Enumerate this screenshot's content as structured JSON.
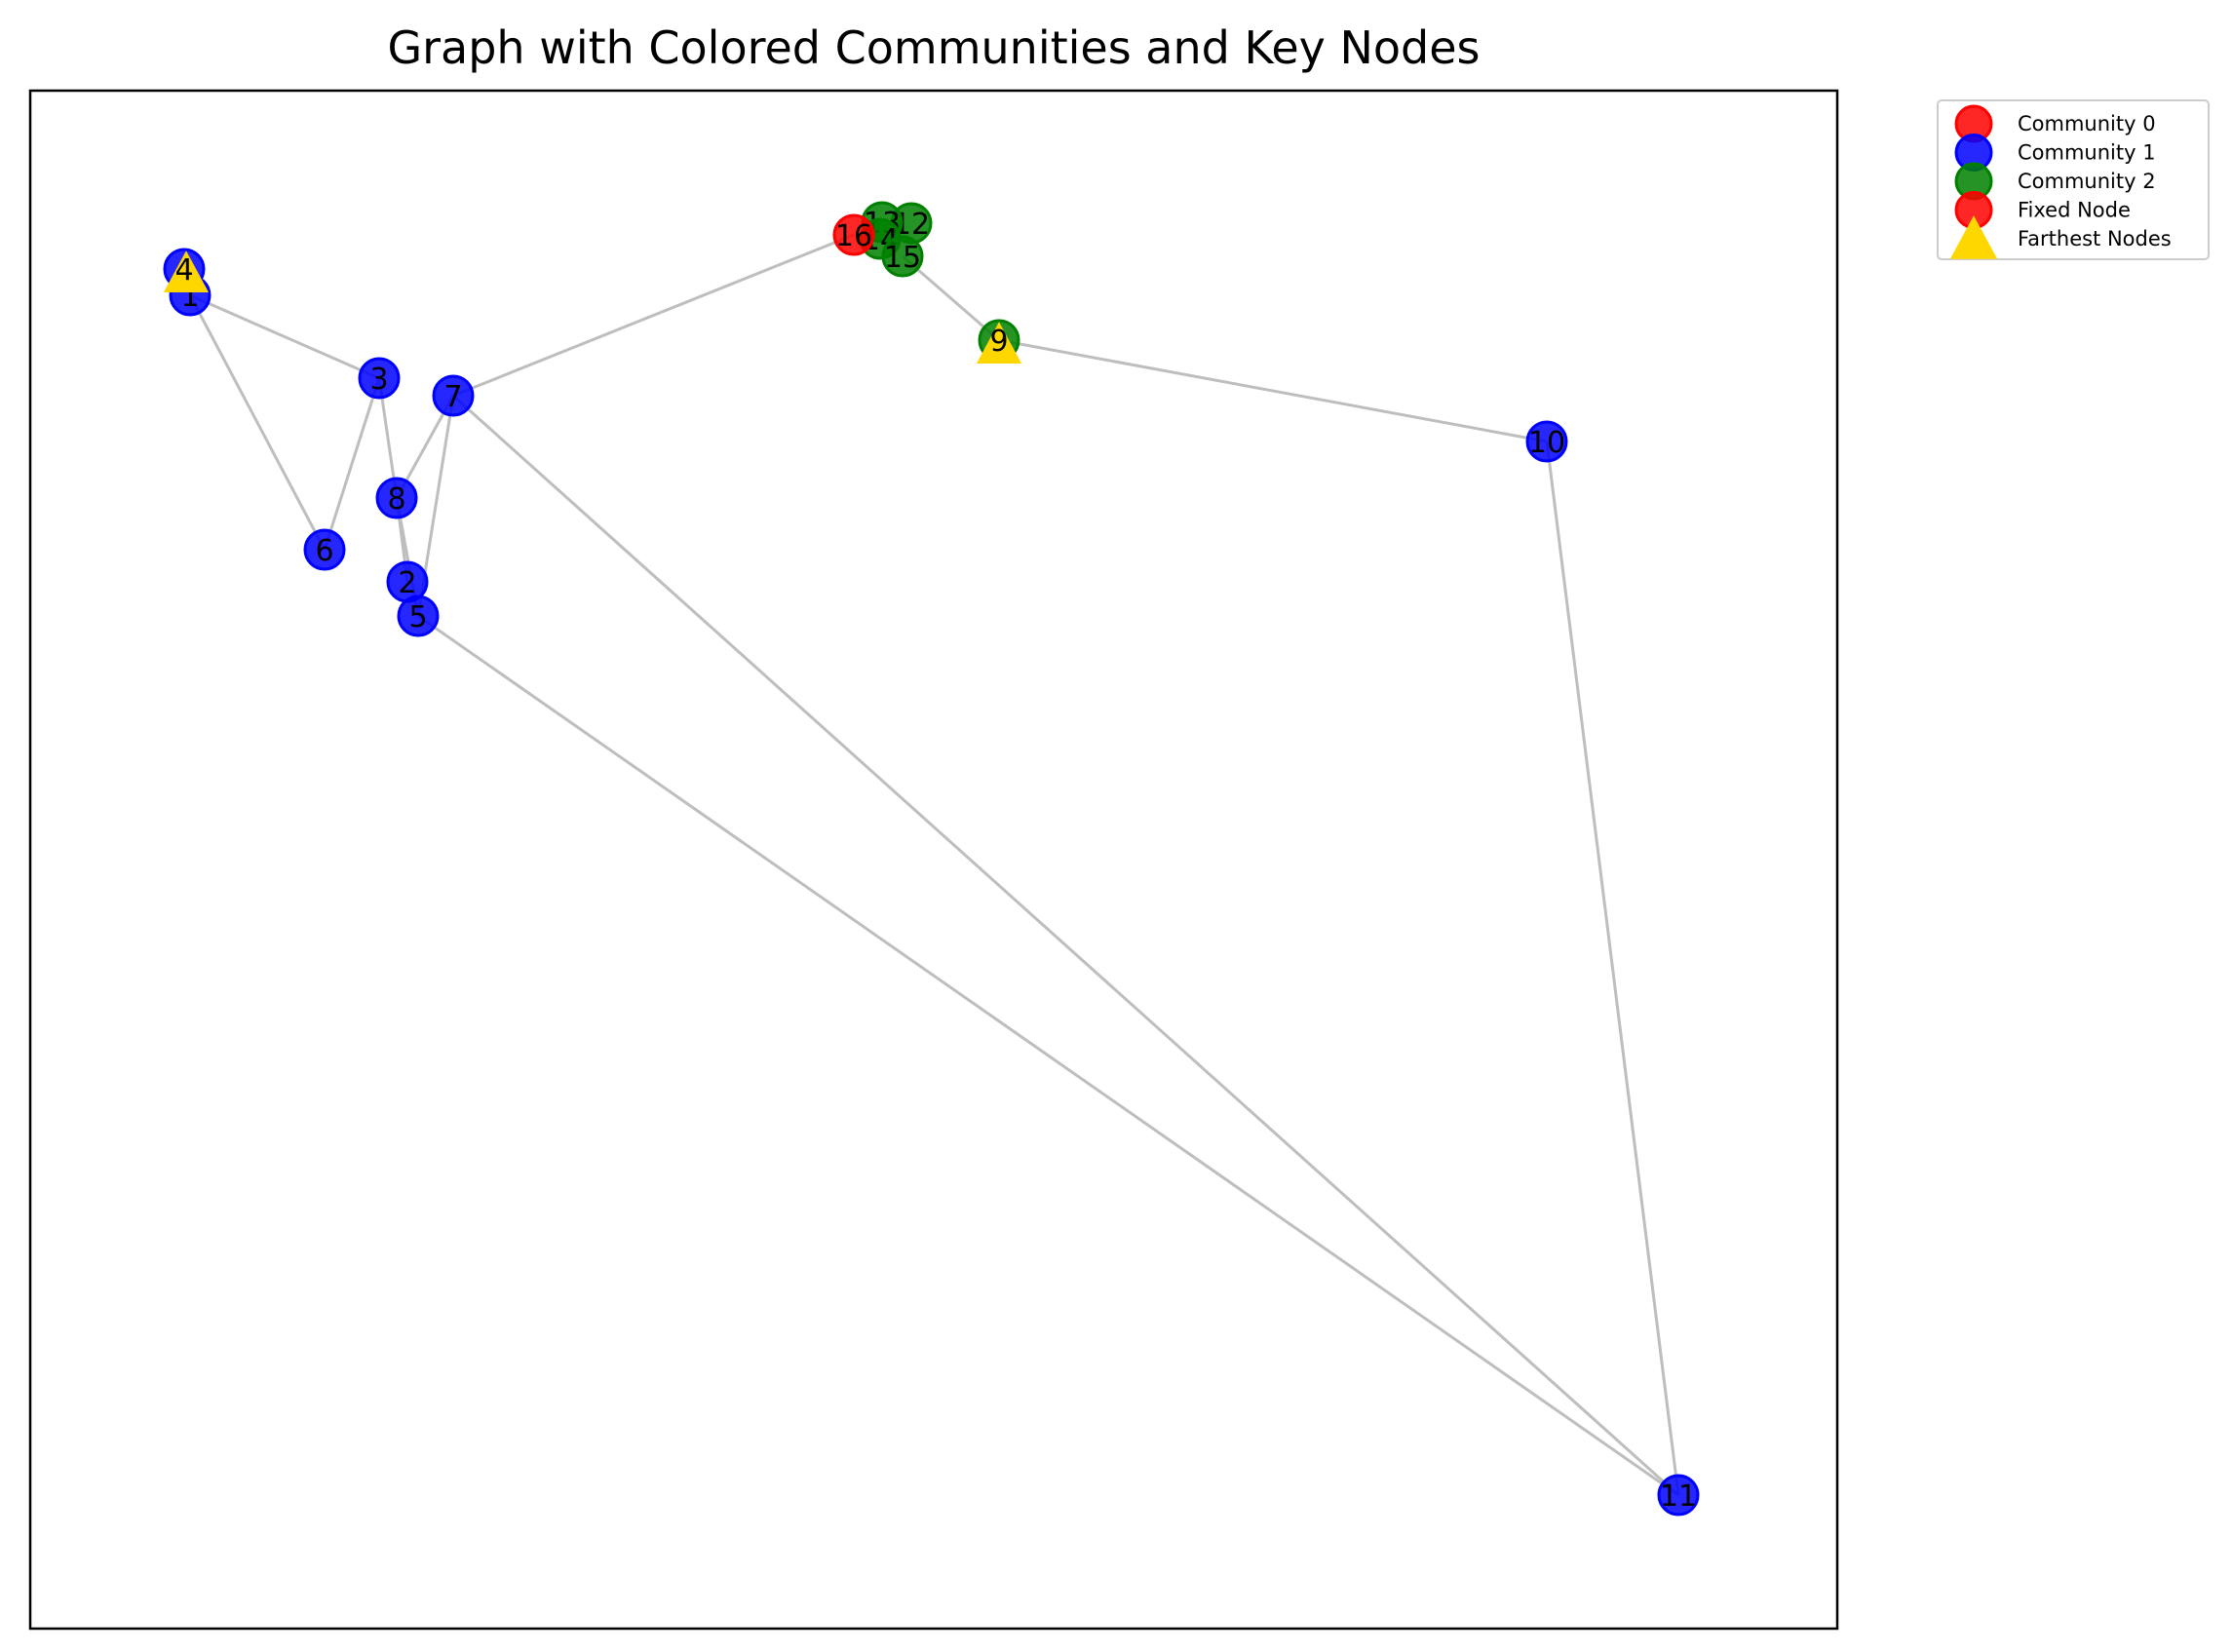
{
  "title": "Graph with Colored Communities and Key Nodes",
  "colors": {
    "community_0": "#ff0000",
    "community_1": "#0000ff",
    "community_2": "#008000",
    "fixed_node": "#ff0000",
    "farthest_nodes": "#ffd700",
    "edge": "#bebebe"
  },
  "legend": [
    {
      "label": "Community 0",
      "marker": "circle",
      "color": "#ff0000"
    },
    {
      "label": "Community 1",
      "marker": "circle",
      "color": "#0000ff"
    },
    {
      "label": "Community 2",
      "marker": "circle",
      "color": "#008000"
    },
    {
      "label": "Fixed Node",
      "marker": "circle",
      "color": "#ff0000"
    },
    {
      "label": "Farthest Nodes",
      "marker": "triangle",
      "color": "#ffd700"
    }
  ],
  "nodes": [
    {
      "id": "1",
      "community": 1
    },
    {
      "id": "2",
      "community": 1
    },
    {
      "id": "3",
      "community": 1
    },
    {
      "id": "4",
      "community": 1
    },
    {
      "id": "5",
      "community": 1
    },
    {
      "id": "6",
      "community": 1
    },
    {
      "id": "7",
      "community": 1
    },
    {
      "id": "8",
      "community": 1
    },
    {
      "id": "9",
      "community": 2
    },
    {
      "id": "10",
      "community": 1
    },
    {
      "id": "11",
      "community": 1
    },
    {
      "id": "12",
      "community": 2
    },
    {
      "id": "13",
      "community": 2
    },
    {
      "id": "14",
      "community": 2
    },
    {
      "id": "15",
      "community": 2
    },
    {
      "id": "16",
      "community": 0
    }
  ],
  "edges": [
    [
      "1",
      "3"
    ],
    [
      "1",
      "6"
    ],
    [
      "3",
      "6"
    ],
    [
      "3",
      "8"
    ],
    [
      "7",
      "8"
    ],
    [
      "7",
      "5"
    ],
    [
      "8",
      "2"
    ],
    [
      "8",
      "5"
    ],
    [
      "7",
      "16"
    ],
    [
      "7",
      "11"
    ],
    [
      "5",
      "11"
    ],
    [
      "15",
      "9"
    ],
    [
      "9",
      "10"
    ],
    [
      "10",
      "11"
    ]
  ],
  "fixed_node": "16",
  "farthest_nodes": [
    "4",
    "9"
  ]
}
